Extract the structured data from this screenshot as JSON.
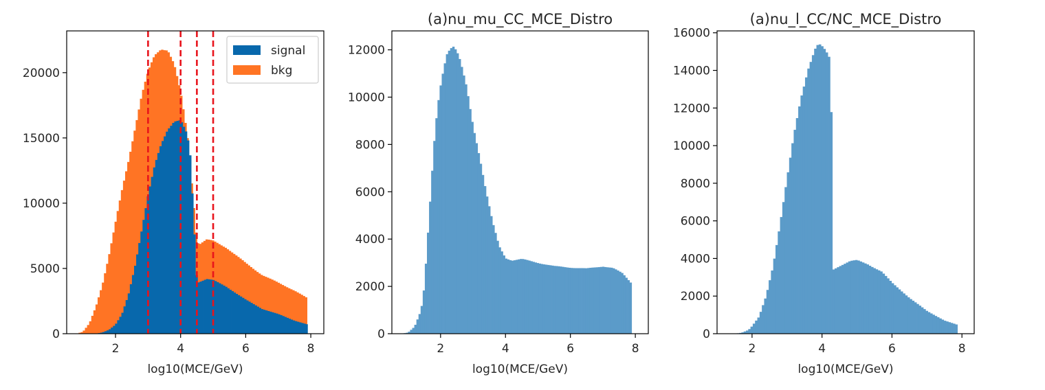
{
  "figure": {
    "colors": {
      "signal": "#0868ac",
      "bkg": "#ff7424",
      "single": "#5b9bc9",
      "cutline": "#e8141c",
      "frame": "#000000",
      "background": "#ffffff"
    }
  },
  "chart_data": [
    {
      "type": "bar",
      "histogram": true,
      "stacked": false,
      "title": "",
      "xlabel": "log10(MCE/GeV)",
      "ylabel": "",
      "xlim": [
        0.5,
        8.4
      ],
      "ylim": [
        0,
        23200
      ],
      "xticks": [
        2,
        4,
        6,
        8
      ],
      "yticks": [
        0,
        5000,
        10000,
        15000,
        20000
      ],
      "grid": false,
      "legend": {
        "position": "top-right",
        "entries": [
          "signal",
          "bkg"
        ]
      },
      "series": [
        {
          "name": "bkg",
          "color": "#ff7424",
          "points": [
            [
              0.8,
              0
            ],
            [
              1.0,
              150
            ],
            [
              1.2,
              800
            ],
            [
              1.4,
              2100
            ],
            [
              1.6,
              3800
            ],
            [
              1.8,
              6000
            ],
            [
              2.0,
              8500
            ],
            [
              2.2,
              11000
            ],
            [
              2.4,
              13300
            ],
            [
              2.6,
              15800
            ],
            [
              2.8,
              18200
            ],
            [
              3.0,
              20000
            ],
            [
              3.2,
              21300
            ],
            [
              3.4,
              21900
            ],
            [
              3.6,
              21800
            ],
            [
              3.8,
              20600
            ],
            [
              4.0,
              18400
            ],
            [
              4.2,
              15300
            ],
            [
              4.3,
              12800
            ],
            [
              4.5,
              7000
            ],
            [
              4.6,
              6900
            ],
            [
              4.8,
              7200
            ],
            [
              5.0,
              7100
            ],
            [
              5.4,
              6600
            ],
            [
              6.0,
              5400
            ],
            [
              6.5,
              4500
            ],
            [
              7.0,
              3900
            ],
            [
              7.5,
              3300
            ],
            [
              7.9,
              2700
            ]
          ]
        },
        {
          "name": "signal",
          "color": "#0868ac",
          "points": [
            [
              1.4,
              0
            ],
            [
              1.6,
              100
            ],
            [
              1.8,
              300
            ],
            [
              2.0,
              700
            ],
            [
              2.2,
              1500
            ],
            [
              2.4,
              3000
            ],
            [
              2.6,
              5200
            ],
            [
              2.8,
              7900
            ],
            [
              3.0,
              10600
            ],
            [
              3.2,
              12800
            ],
            [
              3.4,
              14500
            ],
            [
              3.6,
              15700
            ],
            [
              3.8,
              16300
            ],
            [
              4.0,
              16300
            ],
            [
              4.2,
              15200
            ],
            [
              4.3,
              13500
            ],
            [
              4.5,
              3900
            ],
            [
              4.6,
              4000
            ],
            [
              4.8,
              4200
            ],
            [
              5.0,
              4100
            ],
            [
              5.4,
              3600
            ],
            [
              6.0,
              2600
            ],
            [
              6.5,
              1900
            ],
            [
              7.0,
              1500
            ],
            [
              7.5,
              1000
            ],
            [
              7.9,
              700
            ]
          ]
        }
      ],
      "vlines": [
        3.0,
        4.0,
        4.5,
        5.0
      ]
    },
    {
      "type": "bar",
      "histogram": true,
      "title": "(a)nu_mu_CC_MCE_Distro",
      "xlabel": "log10(MCE/GeV)",
      "ylabel": "",
      "xlim": [
        0.5,
        8.4
      ],
      "ylim": [
        0,
        12800
      ],
      "xticks": [
        2,
        4,
        6,
        8
      ],
      "yticks": [
        0,
        2000,
        4000,
        6000,
        8000,
        10000,
        12000
      ],
      "grid": false,
      "series": [
        {
          "color": "#5b9bc9",
          "points": [
            [
              0.8,
              0
            ],
            [
              1.0,
              50
            ],
            [
              1.2,
              300
            ],
            [
              1.4,
              1000
            ],
            [
              1.5,
              2000
            ],
            [
              1.6,
              4000
            ],
            [
              1.7,
              6000
            ],
            [
              1.8,
              8000
            ],
            [
              1.9,
              9500
            ],
            [
              2.0,
              10500
            ],
            [
              2.1,
              11300
            ],
            [
              2.2,
              11900
            ],
            [
              2.3,
              12100
            ],
            [
              2.4,
              12150
            ],
            [
              2.5,
              11900
            ],
            [
              2.6,
              11500
            ],
            [
              2.8,
              10400
            ],
            [
              3.0,
              8800
            ],
            [
              3.2,
              7500
            ],
            [
              3.4,
              6000
            ],
            [
              3.6,
              4700
            ],
            [
              3.8,
              3700
            ],
            [
              4.0,
              3200
            ],
            [
              4.2,
              3100
            ],
            [
              4.5,
              3150
            ],
            [
              5.0,
              3000
            ],
            [
              5.5,
              2850
            ],
            [
              6.0,
              2800
            ],
            [
              6.5,
              2750
            ],
            [
              7.0,
              2850
            ],
            [
              7.3,
              2780
            ],
            [
              7.6,
              2550
            ],
            [
              7.9,
              2100
            ]
          ]
        }
      ]
    },
    {
      "type": "bar",
      "histogram": true,
      "title": "(a)nu_l_CC/NC_MCE_Distro",
      "xlabel": "log10(MCE/GeV)",
      "ylabel": "",
      "xlim": [
        1.0,
        8.35
      ],
      "ylim": [
        0,
        16100
      ],
      "xticks": [
        2,
        4,
        6,
        8
      ],
      "yticks": [
        0,
        2000,
        4000,
        6000,
        8000,
        10000,
        12000,
        14000,
        16000
      ],
      "grid": false,
      "series": [
        {
          "color": "#5b9bc9",
          "points": [
            [
              1.5,
              0
            ],
            [
              1.7,
              50
            ],
            [
              1.9,
              200
            ],
            [
              2.0,
              400
            ],
            [
              2.2,
              900
            ],
            [
              2.4,
              2000
            ],
            [
              2.6,
              3600
            ],
            [
              2.8,
              5800
            ],
            [
              3.0,
              8200
            ],
            [
              3.2,
              10600
            ],
            [
              3.4,
              12600
            ],
            [
              3.6,
              14100
            ],
            [
              3.8,
              15100
            ],
            [
              3.9,
              15350
            ],
            [
              4.0,
              15200
            ],
            [
              4.1,
              15000
            ],
            [
              4.2,
              14700
            ],
            [
              4.25,
              14600
            ],
            [
              4.3,
              3400
            ],
            [
              4.5,
              3600
            ],
            [
              4.8,
              3850
            ],
            [
              5.0,
              3900
            ],
            [
              5.3,
              3700
            ],
            [
              5.7,
              3300
            ],
            [
              6.0,
              2700
            ],
            [
              6.5,
              1900
            ],
            [
              7.0,
              1200
            ],
            [
              7.5,
              700
            ],
            [
              7.9,
              450
            ]
          ]
        }
      ]
    }
  ]
}
